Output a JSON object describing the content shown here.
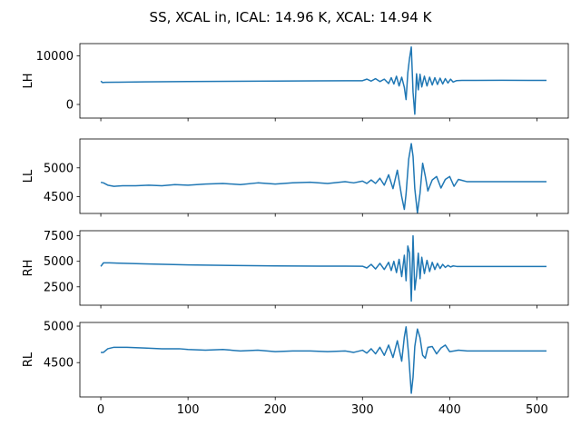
{
  "figure_title": "SS, XCAL in, ICAL: 14.96 K, XCAL: 14.94 K",
  "chart_data": [
    {
      "type": "line",
      "ylabel": "LH",
      "xlim": [
        -24,
        536
      ],
      "ylim": [
        -2800,
        12500
      ],
      "yticks": [
        0,
        10000
      ],
      "yticklabels": [
        "0",
        "10000"
      ],
      "xticks": [
        0,
        100,
        200,
        300,
        400,
        500
      ],
      "show_xticklabels": false,
      "color": "#1f77b4",
      "series": [
        {
          "x": [
            0,
            2,
            5,
            20,
            50,
            100,
            150,
            200,
            250,
            300,
            305,
            310,
            315,
            320,
            325,
            330,
            333,
            336,
            339,
            342,
            345,
            348,
            350,
            352,
            354,
            356,
            358,
            360,
            362,
            364,
            366,
            368,
            371,
            374,
            377,
            380,
            383,
            386,
            389,
            392,
            395,
            398,
            401,
            404,
            408,
            415,
            430,
            460,
            490,
            511
          ],
          "y": [
            4800,
            4500,
            4550,
            4580,
            4630,
            4700,
            4760,
            4800,
            4850,
            4880,
            5200,
            4800,
            5300,
            4700,
            5200,
            4300,
            5500,
            4200,
            5800,
            3800,
            5600,
            3500,
            1000,
            6500,
            9500,
            11800,
            2500,
            -2000,
            6300,
            3000,
            6200,
            3600,
            5800,
            3800,
            5600,
            4000,
            5500,
            4100,
            5400,
            4200,
            5300,
            4400,
            5200,
            4600,
            4900,
            4950,
            4950,
            4960,
            4950,
            4950
          ]
        }
      ]
    },
    {
      "type": "line",
      "ylabel": "LL",
      "xlim": [
        -24,
        536
      ],
      "ylim": [
        4210,
        5500
      ],
      "yticks": [
        4500,
        5000
      ],
      "yticklabels": [
        "4500",
        "5000"
      ],
      "xticks": [
        0,
        100,
        200,
        300,
        400,
        500
      ],
      "show_xticklabels": false,
      "color": "#1f77b4",
      "series": [
        {
          "x": [
            0,
            3,
            8,
            15,
            25,
            40,
            55,
            70,
            85,
            100,
            120,
            140,
            160,
            180,
            200,
            220,
            240,
            260,
            280,
            290,
            300,
            305,
            310,
            315,
            320,
            325,
            330,
            335,
            340,
            345,
            348,
            350,
            353,
            356,
            358,
            360,
            363,
            366,
            369,
            372,
            375,
            380,
            385,
            390,
            395,
            400,
            405,
            410,
            420,
            440,
            470,
            500,
            511
          ],
          "y": [
            4750,
            4740,
            4700,
            4680,
            4690,
            4690,
            4700,
            4690,
            4710,
            4700,
            4720,
            4730,
            4710,
            4740,
            4720,
            4740,
            4750,
            4730,
            4760,
            4740,
            4770,
            4730,
            4790,
            4730,
            4820,
            4700,
            4880,
            4640,
            4960,
            4500,
            4280,
            4550,
            5150,
            5420,
            5200,
            4640,
            4220,
            4560,
            5080,
            4860,
            4600,
            4790,
            4850,
            4650,
            4800,
            4850,
            4680,
            4800,
            4760,
            4760,
            4760,
            4760,
            4760
          ]
        }
      ]
    },
    {
      "type": "line",
      "ylabel": "RH",
      "xlim": [
        -24,
        536
      ],
      "ylim": [
        700,
        8000
      ],
      "yticks": [
        2500,
        5000,
        7500
      ],
      "yticklabels": [
        "2500",
        "5000",
        "7500"
      ],
      "xticks": [
        0,
        100,
        200,
        300,
        400,
        500
      ],
      "show_xticklabels": false,
      "color": "#1f77b4",
      "series": [
        {
          "x": [
            0,
            3,
            10,
            50,
            100,
            150,
            200,
            250,
            300,
            305,
            310,
            315,
            320,
            325,
            330,
            333,
            336,
            339,
            342,
            345,
            348,
            350,
            352,
            354,
            356,
            358,
            360,
            362,
            364,
            366,
            368,
            371,
            374,
            377,
            380,
            383,
            386,
            389,
            392,
            395,
            398,
            401,
            404,
            408,
            415,
            440,
            480,
            511
          ],
          "y": [
            4500,
            4850,
            4850,
            4750,
            4650,
            4600,
            4550,
            4530,
            4520,
            4350,
            4700,
            4250,
            4800,
            4200,
            4900,
            4100,
            5000,
            3900,
            5200,
            3500,
            5600,
            3100,
            6500,
            5800,
            1100,
            7500,
            2200,
            3600,
            5800,
            3300,
            5400,
            3800,
            5100,
            4000,
            4900,
            4200,
            4800,
            4300,
            4700,
            4400,
            4600,
            4450,
            4550,
            4500,
            4500,
            4500,
            4500,
            4500
          ]
        }
      ]
    },
    {
      "type": "line",
      "ylabel": "RL",
      "xlim": [
        -24,
        536
      ],
      "ylim": [
        4030,
        5050
      ],
      "yticks": [
        4500,
        5000
      ],
      "yticklabels": [
        "4500",
        "5000"
      ],
      "xticks": [
        0,
        100,
        200,
        300,
        400,
        500
      ],
      "show_xticklabels": true,
      "xticklabels": [
        "0",
        "100",
        "200",
        "300",
        "400",
        "500"
      ],
      "color": "#1f77b4",
      "series": [
        {
          "x": [
            0,
            3,
            8,
            15,
            30,
            50,
            70,
            90,
            100,
            120,
            140,
            160,
            180,
            200,
            220,
            240,
            260,
            280,
            290,
            300,
            305,
            310,
            315,
            320,
            325,
            330,
            335,
            340,
            345,
            348,
            350,
            353,
            356,
            358,
            360,
            363,
            366,
            369,
            372,
            375,
            380,
            385,
            390,
            395,
            400,
            405,
            410,
            420,
            440,
            470,
            500,
            511
          ],
          "y": [
            4640,
            4640,
            4690,
            4710,
            4710,
            4700,
            4690,
            4690,
            4680,
            4670,
            4680,
            4660,
            4670,
            4650,
            4660,
            4660,
            4650,
            4660,
            4640,
            4670,
            4630,
            4690,
            4620,
            4710,
            4600,
            4740,
            4570,
            4800,
            4520,
            4850,
            4990,
            4600,
            4080,
            4300,
            4720,
            4960,
            4840,
            4600,
            4560,
            4710,
            4720,
            4620,
            4700,
            4740,
            4650,
            4660,
            4670,
            4660,
            4660,
            4660,
            4660,
            4660
          ]
        }
      ]
    }
  ]
}
